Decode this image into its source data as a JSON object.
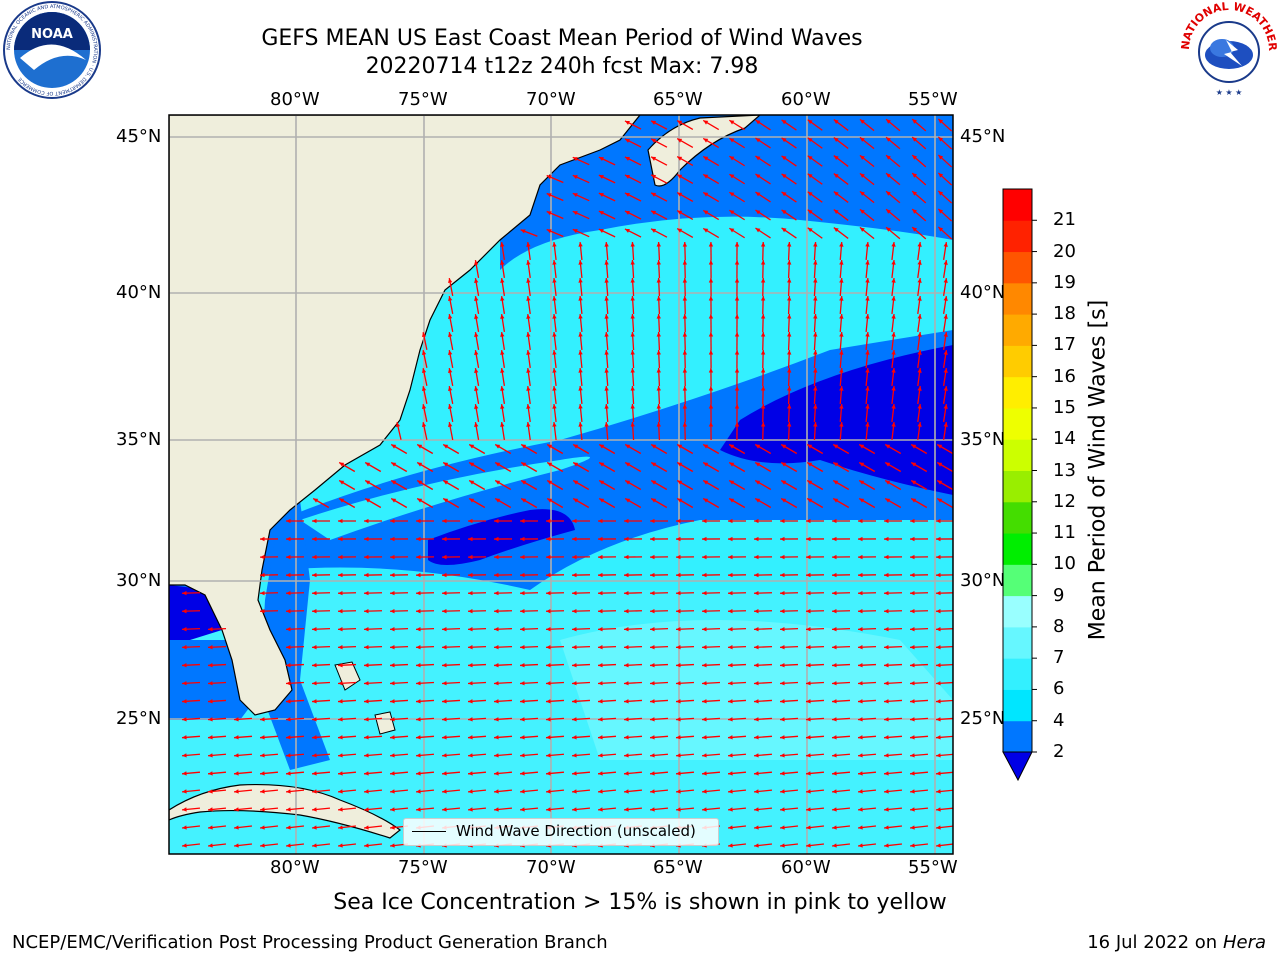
{
  "title": {
    "line1": "GEFS MEAN US East Coast Mean Period of Wind Waves",
    "line2": "20220714 t12z 240h fcst   Max: 7.98"
  },
  "logos": {
    "left": "noaa-logo",
    "right": "national-weather-service-logo",
    "left_text": "NOAA",
    "left_ring_text": "NATIONAL OCEANIC AND ATMOSPHERIC ADMINISTRATION · U.S. DEPARTMENT OF COMMERCE",
    "right_ring_text": "NATIONAL WEATHER SERVICE"
  },
  "map": {
    "lon_labels": [
      "80°W",
      "75°W",
      "70°W",
      "65°W",
      "60°W",
      "55°W"
    ],
    "lat_labels": [
      "45°N",
      "40°N",
      "35°N",
      "30°N",
      "25°N"
    ],
    "legend": "Wind Wave Direction (unscaled)",
    "land_color": "#efeedc",
    "arrow_color": "#ff0000"
  },
  "colorbar": {
    "label": "Mean Period of Wind Waves [s]",
    "ticks": [
      "2",
      "4",
      "6",
      "7",
      "8",
      "9",
      "10",
      "11",
      "12",
      "13",
      "14",
      "15",
      "16",
      "17",
      "18",
      "19",
      "20",
      "21"
    ],
    "colors": [
      "#0000e6",
      "#0077ff",
      "#00e6ff",
      "#33f0ff",
      "#66f7ff",
      "#99ffff",
      "#55ff77",
      "#00ee00",
      "#44dd00",
      "#99ee00",
      "#ccff00",
      "#eeff00",
      "#ffee00",
      "#ffcc00",
      "#ffaa00",
      "#ff8800",
      "#ff5500",
      "#ff2200",
      "#ff0000"
    ]
  },
  "note": "Sea Ice Concentration > 15% is shown in pink to yellow",
  "footer": {
    "left": "NCEP/EMC/Verification Post Processing Product Generation Branch",
    "right_date": "16 Jul 2022 on ",
    "right_machine": "Hera"
  }
}
